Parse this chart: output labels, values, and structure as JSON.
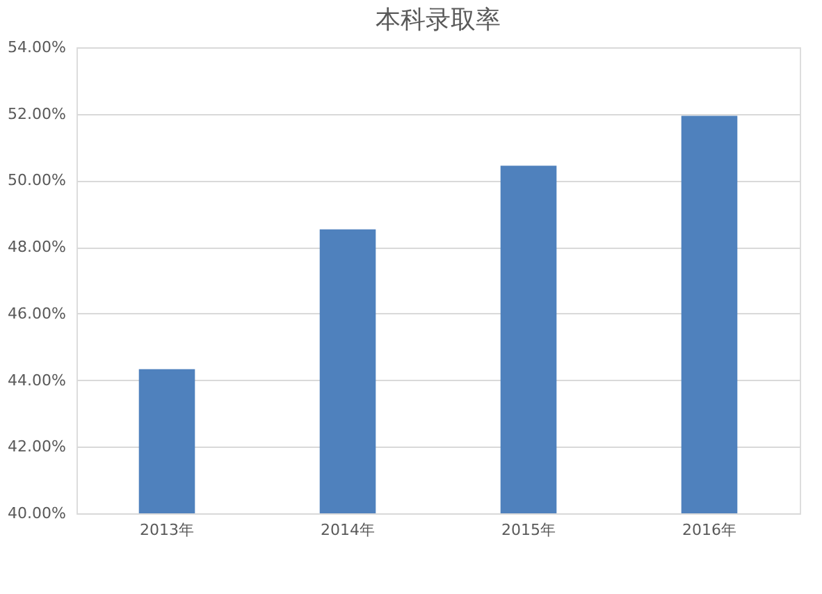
{
  "chart_data": {
    "type": "bar",
    "title": "本科录取率",
    "categories": [
      "2013年",
      "2014年",
      "2015年",
      "2016年"
    ],
    "values": [
      44.33,
      48.53,
      50.44,
      51.94
    ],
    "color": "#4f81bd",
    "ylim": [
      40,
      54
    ],
    "yticks": [
      {
        "value": 40,
        "label": "40.00%"
      },
      {
        "value": 42,
        "label": "42.00%"
      },
      {
        "value": 44,
        "label": "44.00%"
      },
      {
        "value": 46,
        "label": "46.00%"
      },
      {
        "value": 48,
        "label": "48.00%"
      },
      {
        "value": 50,
        "label": "50.00%"
      },
      {
        "value": 52,
        "label": "52.00%"
      },
      {
        "value": 54,
        "label": "54.00%"
      }
    ],
    "grid": "y"
  }
}
